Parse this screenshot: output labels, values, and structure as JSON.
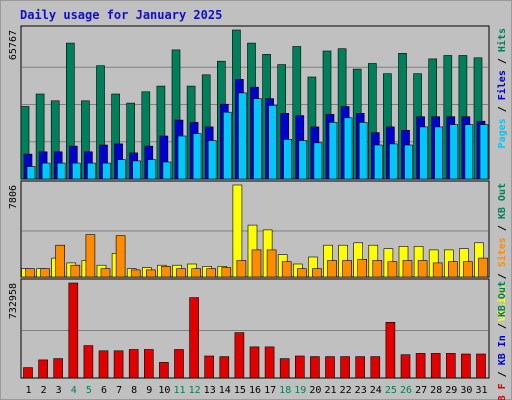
{
  "title": "Daily usage for January 2025",
  "colors": {
    "background": "#C0C0C0",
    "outer_border": "#9A9A9A",
    "title": "#1010C8",
    "hits": "#00805A",
    "files": "#0000D0",
    "pages": "#00C8F8",
    "visits": "#FFFF00",
    "sites": "#FF8C00",
    "kb_f": "#E00000",
    "kb_in": "#0000D0",
    "kb_out": "#00805A",
    "weekend_tick": "#00805A",
    "tick": "#000000"
  },
  "chart_data": [
    {
      "type": "bar",
      "name": "hits-files-pages",
      "ymax_label": "65767",
      "ylim": [
        0,
        65767
      ],
      "right_label": [
        {
          "text": "Pages",
          "color": "#00C8F8"
        },
        {
          "text": " / ",
          "color": "#000000"
        },
        {
          "text": "Files",
          "color": "#0000D0"
        },
        {
          "text": " / ",
          "color": "#000000"
        },
        {
          "text": "Hits",
          "color": "#00805A"
        }
      ],
      "categories": [
        "1",
        "2",
        "3",
        "4",
        "5",
        "6",
        "7",
        "8",
        "9",
        "10",
        "11",
        "12",
        "13",
        "14",
        "15",
        "16",
        "17",
        "18",
        "19",
        "20",
        "21",
        "22",
        "23",
        "24",
        "25",
        "26",
        "27",
        "28",
        "29",
        "30",
        "31"
      ],
      "series": [
        {
          "name": "Hits",
          "color": "#00805A",
          "values": [
            32000,
            37500,
            34500,
            60000,
            34500,
            50000,
            37500,
            33500,
            38500,
            41000,
            57000,
            41000,
            46000,
            52000,
            65767,
            60000,
            55000,
            50500,
            58500,
            45000,
            56500,
            57500,
            48500,
            51000,
            46500,
            55500,
            46500,
            53000,
            54500,
            54500,
            53500
          ]
        },
        {
          "name": "Files",
          "color": "#0000D0",
          "values": [
            11000,
            12000,
            12000,
            14500,
            12000,
            15000,
            15500,
            11500,
            14500,
            19000,
            26000,
            25000,
            23000,
            33000,
            44000,
            40500,
            35500,
            29000,
            28000,
            23000,
            28500,
            32000,
            29000,
            20500,
            23000,
            21500,
            27500,
            27500,
            27500,
            27500,
            25500
          ]
        },
        {
          "name": "Pages",
          "color": "#00C8F8",
          "values": [
            5500,
            7000,
            7000,
            7000,
            7000,
            7000,
            8500,
            8000,
            8500,
            7500,
            19000,
            20000,
            17000,
            29500,
            38000,
            35500,
            32500,
            17500,
            17000,
            16000,
            25000,
            27000,
            25000,
            15000,
            15500,
            15000,
            23000,
            23000,
            24000,
            24000,
            24000
          ]
        }
      ]
    },
    {
      "type": "bar",
      "name": "visits-sites",
      "ymax_label": "7806",
      "ylim": [
        0,
        7806
      ],
      "right_label": [
        {
          "text": "Visits",
          "color": "#FFFF00"
        },
        {
          "text": " / ",
          "color": "#000000"
        },
        {
          "text": "Sites",
          "color": "#FF8C00"
        },
        {
          "text": " / ",
          "color": "#000000"
        },
        {
          "text": "KB Out",
          "color": "#00805A"
        }
      ],
      "categories": [
        "1",
        "2",
        "3",
        "4",
        "5",
        "6",
        "7",
        "8",
        "9",
        "10",
        "11",
        "12",
        "13",
        "14",
        "15",
        "16",
        "17",
        "18",
        "19",
        "20",
        "21",
        "22",
        "23",
        "24",
        "25",
        "26",
        "27",
        "28",
        "29",
        "30",
        "31"
      ],
      "series": [
        {
          "name": "Visits",
          "color": "#FFFF00",
          "values": [
            700,
            700,
            1600,
            1200,
            1400,
            1000,
            2000,
            700,
            800,
            1000,
            1000,
            1100,
            900,
            900,
            7806,
            4400,
            4000,
            1900,
            1100,
            1700,
            2700,
            2700,
            2900,
            2700,
            2400,
            2600,
            2600,
            2300,
            2300,
            2400,
            2900
          ]
        },
        {
          "name": "Sites",
          "color": "#FF8C00",
          "values": [
            700,
            700,
            2700,
            1000,
            3600,
            700,
            3500,
            600,
            600,
            900,
            700,
            700,
            700,
            800,
            1400,
            2300,
            2300,
            1300,
            700,
            700,
            1400,
            1400,
            1500,
            1400,
            1300,
            1400,
            1400,
            1200,
            1300,
            1300,
            1600
          ]
        }
      ]
    },
    {
      "type": "bar",
      "name": "kbytes",
      "ymax_label": "732958",
      "ylim": [
        0,
        732958
      ],
      "right_label": [
        {
          "text": "KB F",
          "color": "#E00000"
        },
        {
          "text": " / ",
          "color": "#000000"
        },
        {
          "text": "KB In",
          "color": "#0000D0"
        },
        {
          "text": " / ",
          "color": "#000000"
        },
        {
          "text": "KB Out",
          "color": "#00805A"
        }
      ],
      "categories": [
        "1",
        "2",
        "3",
        "4",
        "5",
        "6",
        "7",
        "8",
        "9",
        "10",
        "11",
        "12",
        "13",
        "14",
        "15",
        "16",
        "17",
        "18",
        "19",
        "20",
        "21",
        "22",
        "23",
        "24",
        "25",
        "26",
        "27",
        "28",
        "29",
        "30",
        "31"
      ],
      "series": [
        {
          "name": "KB F",
          "color": "#E00000",
          "values": [
            80000,
            140000,
            150000,
            732958,
            250000,
            210000,
            210000,
            220000,
            220000,
            120000,
            220000,
            620000,
            170000,
            165000,
            350000,
            240000,
            240000,
            150000,
            170000,
            165000,
            165000,
            165000,
            165000,
            165000,
            430000,
            180000,
            190000,
            190000,
            190000,
            185000,
            185000
          ]
        }
      ]
    }
  ],
  "day_labels": [
    {
      "text": "1",
      "weekend": false
    },
    {
      "text": "2",
      "weekend": false
    },
    {
      "text": "3",
      "weekend": false
    },
    {
      "text": "4",
      "weekend": true
    },
    {
      "text": "5",
      "weekend": true
    },
    {
      "text": "6",
      "weekend": false
    },
    {
      "text": "7",
      "weekend": false
    },
    {
      "text": "8",
      "weekend": false
    },
    {
      "text": "9",
      "weekend": false
    },
    {
      "text": "10",
      "weekend": false
    },
    {
      "text": "11",
      "weekend": true
    },
    {
      "text": "12",
      "weekend": true
    },
    {
      "text": "13",
      "weekend": false
    },
    {
      "text": "14",
      "weekend": false
    },
    {
      "text": "15",
      "weekend": false
    },
    {
      "text": "16",
      "weekend": false
    },
    {
      "text": "17",
      "weekend": false
    },
    {
      "text": "18",
      "weekend": true
    },
    {
      "text": "19",
      "weekend": true
    },
    {
      "text": "20",
      "weekend": false
    },
    {
      "text": "21",
      "weekend": false
    },
    {
      "text": "22",
      "weekend": false
    },
    {
      "text": "23",
      "weekend": false
    },
    {
      "text": "24",
      "weekend": false
    },
    {
      "text": "25",
      "weekend": true
    },
    {
      "text": "26",
      "weekend": true
    },
    {
      "text": "27",
      "weekend": false
    },
    {
      "text": "28",
      "weekend": false
    },
    {
      "text": "29",
      "weekend": false
    },
    {
      "text": "30",
      "weekend": false
    },
    {
      "text": "31",
      "weekend": false
    }
  ]
}
